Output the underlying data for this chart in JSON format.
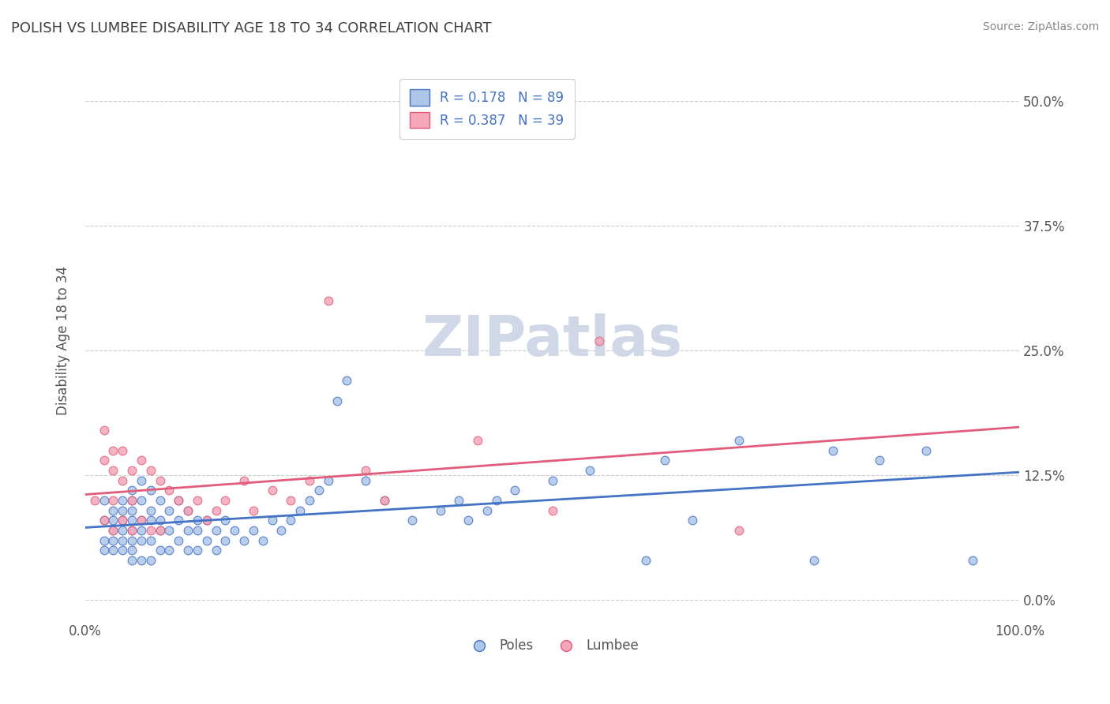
{
  "title": "POLISH VS LUMBEE DISABILITY AGE 18 TO 34 CORRELATION CHART",
  "source": "Source: ZipAtlas.com",
  "xlabel": "",
  "ylabel": "Disability Age 18 to 34",
  "xlim": [
    0.0,
    1.0
  ],
  "ylim": [
    -0.02,
    0.54
  ],
  "yticks": [
    0.0,
    0.125,
    0.25,
    0.375,
    0.5
  ],
  "ytick_labels": [
    "0.0%",
    "12.5%",
    "25.0%",
    "37.5%",
    "50.0%"
  ],
  "xticks": [
    0.0,
    1.0
  ],
  "xtick_labels": [
    "0.0%",
    "100.0%"
  ],
  "poles_R": 0.178,
  "poles_N": 89,
  "lumbee_R": 0.387,
  "lumbee_N": 39,
  "poles_color": "#aec6e8",
  "lumbee_color": "#f4a7b9",
  "poles_line_color": "#4472c4",
  "lumbee_line_color": "#e05c7a",
  "background_color": "#ffffff",
  "grid_color": "#cccccc",
  "title_color": "#404040",
  "watermark_color": "#d0d8e8",
  "poles_x": [
    0.02,
    0.02,
    0.02,
    0.02,
    0.03,
    0.03,
    0.03,
    0.03,
    0.03,
    0.04,
    0.04,
    0.04,
    0.04,
    0.04,
    0.04,
    0.05,
    0.05,
    0.05,
    0.05,
    0.05,
    0.05,
    0.05,
    0.05,
    0.06,
    0.06,
    0.06,
    0.06,
    0.06,
    0.06,
    0.07,
    0.07,
    0.07,
    0.07,
    0.07,
    0.08,
    0.08,
    0.08,
    0.08,
    0.09,
    0.09,
    0.09,
    0.1,
    0.1,
    0.1,
    0.11,
    0.11,
    0.11,
    0.12,
    0.12,
    0.12,
    0.13,
    0.13,
    0.14,
    0.14,
    0.15,
    0.15,
    0.16,
    0.17,
    0.18,
    0.19,
    0.2,
    0.21,
    0.22,
    0.23,
    0.24,
    0.25,
    0.26,
    0.27,
    0.28,
    0.3,
    0.32,
    0.35,
    0.38,
    0.4,
    0.41,
    0.43,
    0.44,
    0.46,
    0.5,
    0.54,
    0.6,
    0.62,
    0.65,
    0.7,
    0.78,
    0.8,
    0.85,
    0.9,
    0.95
  ],
  "poles_y": [
    0.1,
    0.08,
    0.06,
    0.05,
    0.09,
    0.08,
    0.07,
    0.06,
    0.05,
    0.1,
    0.09,
    0.08,
    0.07,
    0.06,
    0.05,
    0.11,
    0.1,
    0.09,
    0.08,
    0.07,
    0.06,
    0.05,
    0.04,
    0.12,
    0.1,
    0.08,
    0.07,
    0.06,
    0.04,
    0.11,
    0.09,
    0.08,
    0.06,
    0.04,
    0.1,
    0.08,
    0.07,
    0.05,
    0.09,
    0.07,
    0.05,
    0.1,
    0.08,
    0.06,
    0.09,
    0.07,
    0.05,
    0.08,
    0.07,
    0.05,
    0.08,
    0.06,
    0.07,
    0.05,
    0.08,
    0.06,
    0.07,
    0.06,
    0.07,
    0.06,
    0.08,
    0.07,
    0.08,
    0.09,
    0.1,
    0.11,
    0.12,
    0.2,
    0.22,
    0.12,
    0.1,
    0.08,
    0.09,
    0.1,
    0.08,
    0.09,
    0.1,
    0.11,
    0.12,
    0.13,
    0.04,
    0.14,
    0.08,
    0.16,
    0.04,
    0.15,
    0.14,
    0.15,
    0.04
  ],
  "lumbee_x": [
    0.01,
    0.02,
    0.02,
    0.02,
    0.03,
    0.03,
    0.03,
    0.03,
    0.04,
    0.04,
    0.04,
    0.05,
    0.05,
    0.05,
    0.06,
    0.06,
    0.07,
    0.07,
    0.08,
    0.08,
    0.09,
    0.1,
    0.11,
    0.12,
    0.13,
    0.14,
    0.15,
    0.17,
    0.18,
    0.2,
    0.22,
    0.24,
    0.26,
    0.3,
    0.32,
    0.42,
    0.5,
    0.55,
    0.7
  ],
  "lumbee_y": [
    0.1,
    0.17,
    0.14,
    0.08,
    0.15,
    0.13,
    0.1,
    0.07,
    0.15,
    0.12,
    0.08,
    0.13,
    0.1,
    0.07,
    0.14,
    0.08,
    0.13,
    0.07,
    0.12,
    0.07,
    0.11,
    0.1,
    0.09,
    0.1,
    0.08,
    0.09,
    0.1,
    0.12,
    0.09,
    0.11,
    0.1,
    0.12,
    0.3,
    0.13,
    0.1,
    0.16,
    0.09,
    0.26,
    0.07
  ]
}
